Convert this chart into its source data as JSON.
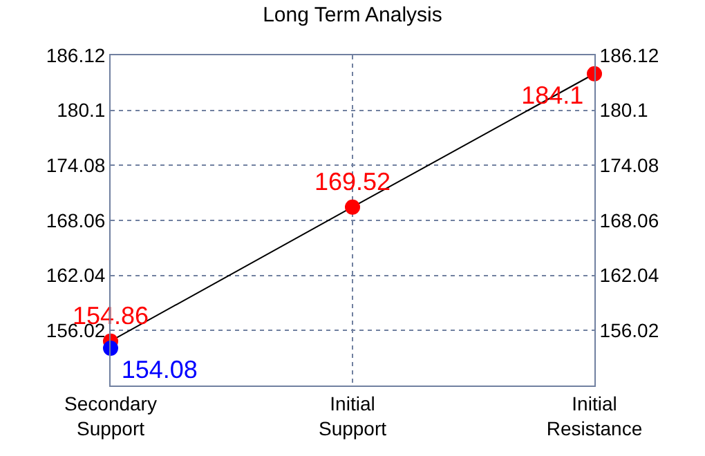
{
  "chart_data": {
    "type": "scatter",
    "title": "Long Term Analysis",
    "categories": [
      "Secondary\nSupport",
      "Initial\nSupport",
      "Initial\nResistance"
    ],
    "series": [
      {
        "type": "line",
        "color": "#000000",
        "values": [
          154.86,
          169.52,
          184.1
        ],
        "marker": "none"
      },
      {
        "color": "#ff0000",
        "values": [
          154.86,
          169.52,
          184.1
        ],
        "value_labels": [
          "154.86",
          "169.52",
          "184.1"
        ]
      },
      {
        "color": "#0000ff",
        "values": [
          154.08,
          null,
          null
        ],
        "value_labels": [
          "154.08",
          null,
          null
        ]
      }
    ],
    "ylim": [
      150.0,
      186.12
    ],
    "yticks": [
      156.02,
      162.04,
      168.06,
      174.08,
      180.1,
      186.12
    ],
    "y2lim": [
      150.0,
      186.12
    ],
    "y2ticks": [
      156.02,
      162.04,
      168.06,
      174.08,
      180.1,
      186.12
    ],
    "grid": true,
    "legend": false,
    "marker": "circle"
  }
}
